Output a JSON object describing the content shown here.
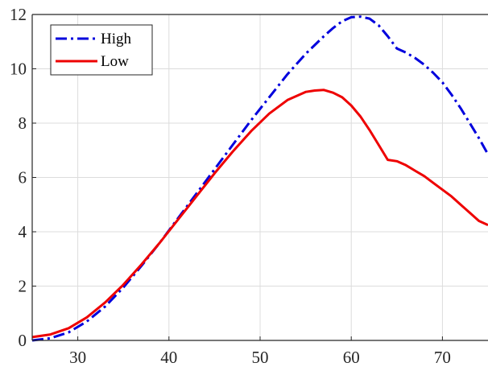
{
  "chart_data": {
    "type": "line",
    "xlim": [
      25,
      75
    ],
    "ylim": [
      0,
      12
    ],
    "xticks": [
      30,
      40,
      50,
      60,
      70
    ],
    "yticks": [
      0,
      2,
      4,
      6,
      8,
      10,
      12
    ],
    "grid": true,
    "legend_position": "top-left",
    "series": [
      {
        "name": "High",
        "color": "#0000dd",
        "style": "dash-dot",
        "x": [
          25,
          27,
          29,
          31,
          33,
          35,
          37,
          39,
          41,
          43,
          45,
          47,
          49,
          51,
          53,
          55,
          57,
          58,
          59,
          60,
          61,
          62,
          63,
          64,
          65,
          66,
          67,
          68,
          69,
          70,
          71,
          72,
          73,
          74,
          75
        ],
        "y": [
          0.0,
          0.08,
          0.3,
          0.7,
          1.25,
          1.95,
          2.75,
          3.6,
          4.5,
          5.4,
          6.3,
          7.2,
          8.1,
          8.95,
          9.8,
          10.55,
          11.2,
          11.5,
          11.75,
          11.9,
          11.92,
          11.85,
          11.6,
          11.2,
          10.75,
          10.6,
          10.4,
          10.15,
          9.85,
          9.5,
          9.05,
          8.55,
          8.0,
          7.45,
          6.85
        ]
      },
      {
        "name": "Low",
        "color": "#ee0000",
        "style": "solid",
        "x": [
          25,
          27,
          29,
          31,
          33,
          35,
          37,
          39,
          41,
          43,
          45,
          47,
          49,
          51,
          53,
          55,
          56,
          57,
          58,
          59,
          60,
          61,
          62,
          63,
          64,
          65,
          66,
          67,
          68,
          69,
          70,
          71,
          72,
          73,
          74,
          75
        ],
        "y": [
          0.12,
          0.22,
          0.45,
          0.85,
          1.4,
          2.05,
          2.8,
          3.6,
          4.45,
          5.3,
          6.15,
          6.95,
          7.7,
          8.35,
          8.85,
          9.15,
          9.2,
          9.22,
          9.12,
          8.95,
          8.65,
          8.25,
          7.75,
          7.2,
          6.65,
          6.6,
          6.45,
          6.25,
          6.05,
          5.8,
          5.55,
          5.3,
          5.0,
          4.7,
          4.4,
          4.25
        ]
      }
    ]
  }
}
